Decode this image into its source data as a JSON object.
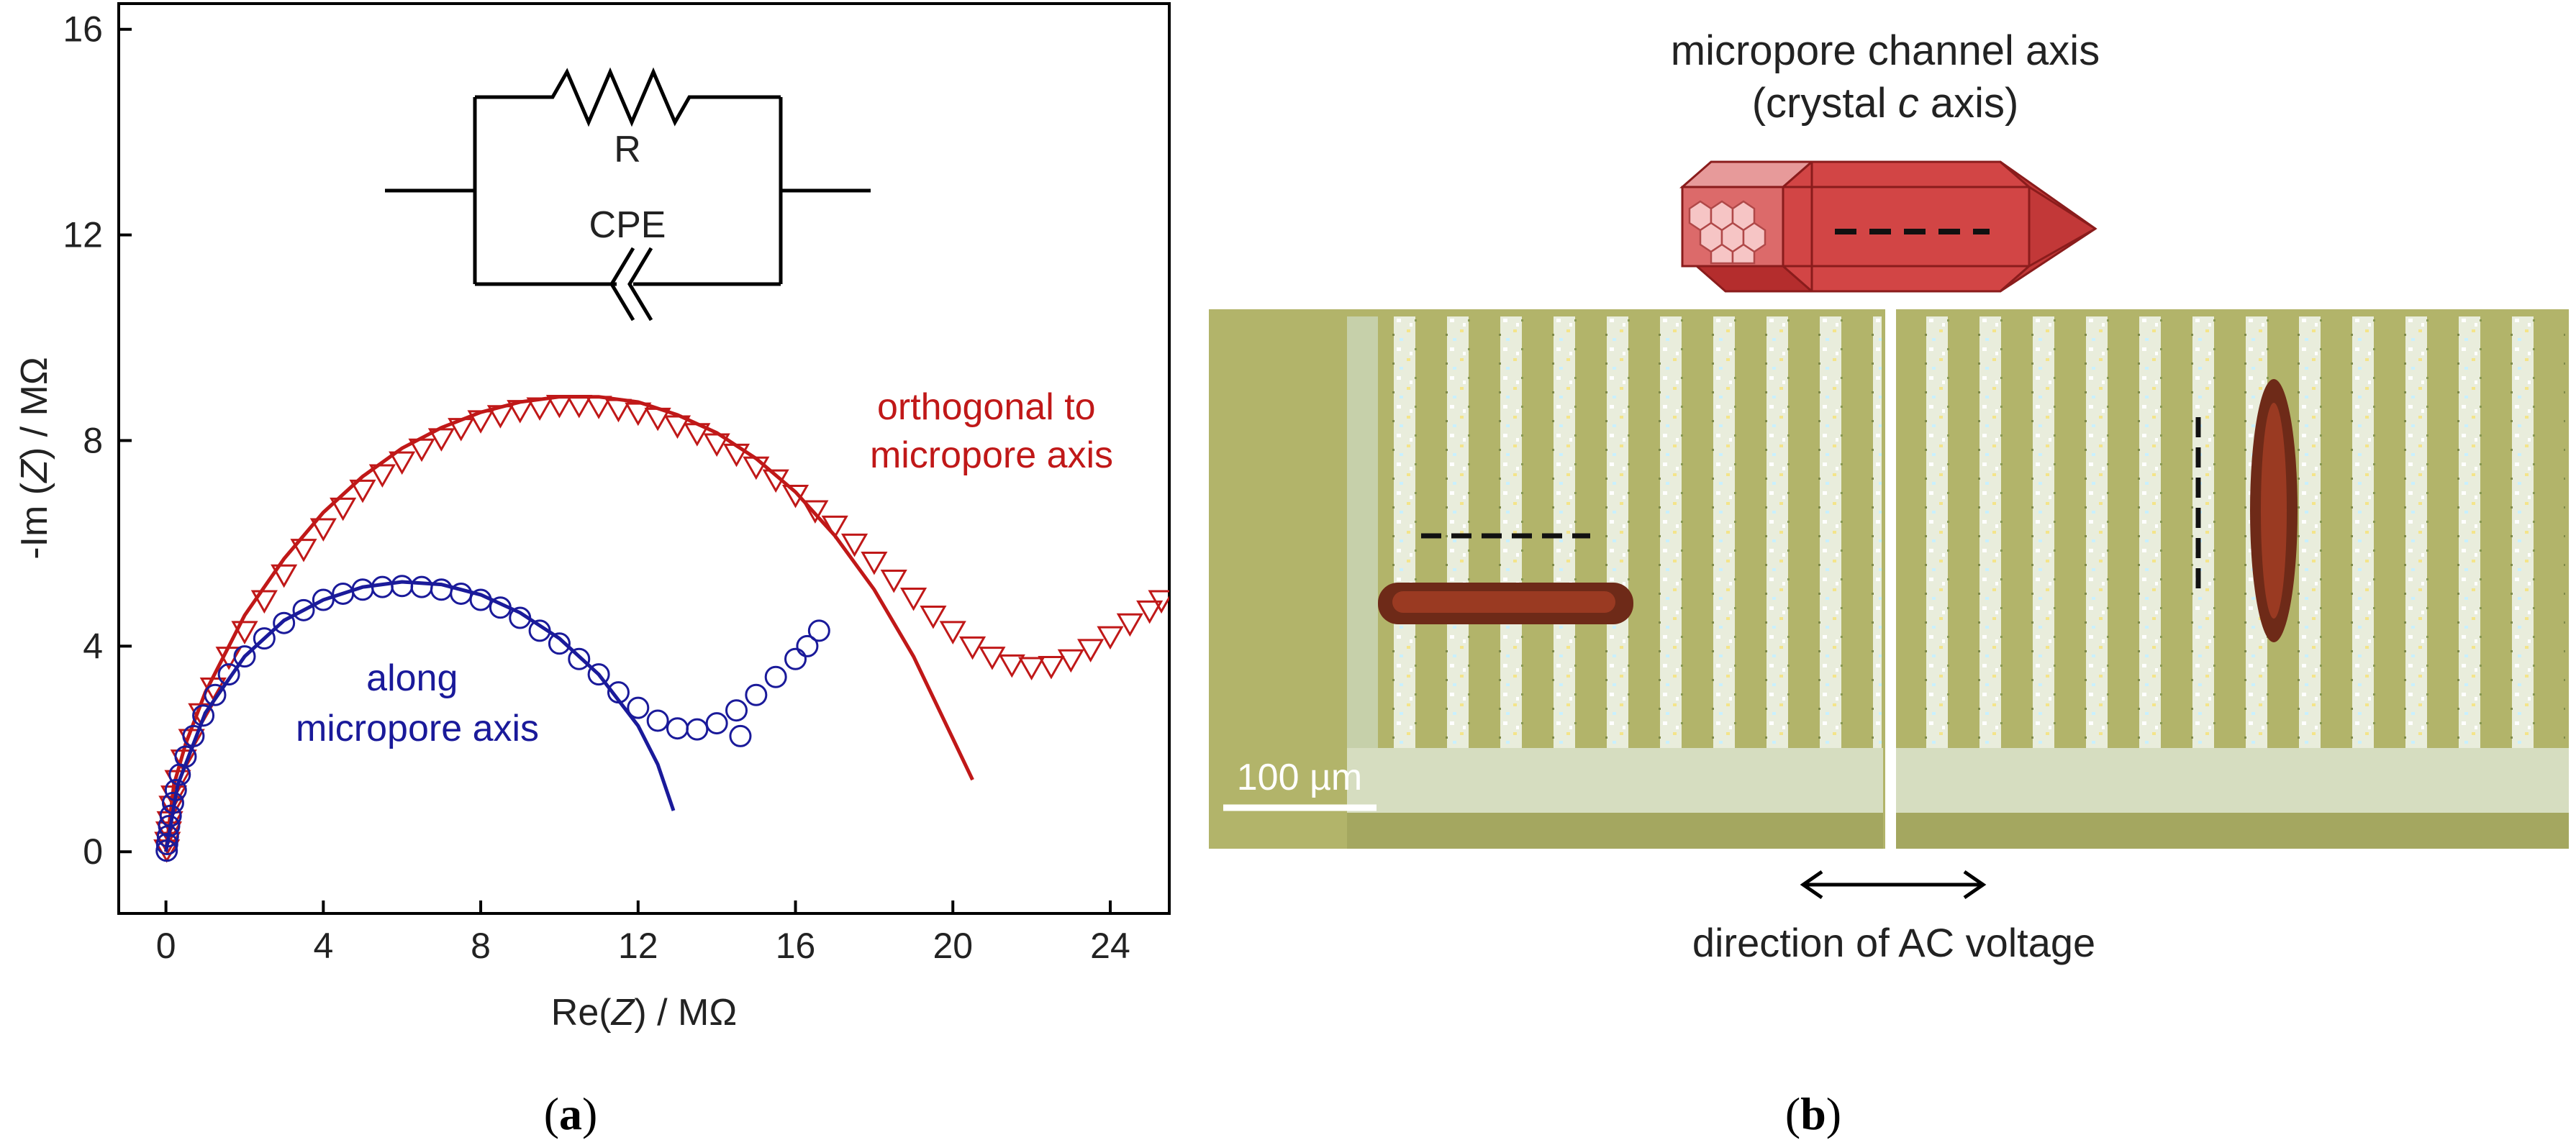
{
  "panel_a": {
    "label_open": "(",
    "label_letter": "a",
    "label_close": ")",
    "circuit": {
      "resistor_label": "R",
      "cpe_label": "CPE"
    }
  },
  "panel_b": {
    "label_open": "(",
    "label_letter": "b",
    "label_close": ")",
    "axis_title_line1": "micropore channel axis",
    "axis_title_line2_pre": "(crystal ",
    "axis_title_line2_italic": "c",
    "axis_title_line2_post": " axis)",
    "scale_bar": "100 µm",
    "direction_label": "direction of AC voltage"
  },
  "colors": {
    "red": "#c01818",
    "blue": "#1a1a9a",
    "crystal": "#d24545",
    "micro_bg": "#b2b46a"
  },
  "chart_data": {
    "type": "scatter",
    "title": "",
    "xlabel_pre": "Re(",
    "xlabel_italic": "Z",
    "xlabel_post": ") / MΩ",
    "ylabel_pre": "-Im (",
    "ylabel_italic": "Z",
    "ylabel_post": ") / MΩ",
    "xlim": [
      -1.2,
      25.5
    ],
    "ylim": [
      -1.2,
      16.5
    ],
    "xticks": [
      "0",
      "4",
      "8",
      "12",
      "16",
      "20",
      "24"
    ],
    "yticks": [
      "0",
      "4",
      "8",
      "12",
      "16"
    ],
    "series": [
      {
        "name": "orthogonal to micropore axis",
        "label_line1": "orthogonal to",
        "label_line2": "micropore axis",
        "color": "#c01818",
        "marker": "triangle-down",
        "points": [
          [
            0.02,
            0.05
          ],
          [
            0.04,
            0.2
          ],
          [
            0.07,
            0.4
          ],
          [
            0.1,
            0.6
          ],
          [
            0.15,
            0.9
          ],
          [
            0.2,
            1.1
          ],
          [
            0.3,
            1.4
          ],
          [
            0.45,
            1.8
          ],
          [
            0.65,
            2.2
          ],
          [
            0.9,
            2.7
          ],
          [
            1.2,
            3.2
          ],
          [
            1.6,
            3.8
          ],
          [
            2.0,
            4.3
          ],
          [
            2.5,
            4.9
          ],
          [
            3.0,
            5.4
          ],
          [
            3.5,
            5.9
          ],
          [
            4.0,
            6.3
          ],
          [
            4.5,
            6.7
          ],
          [
            5.0,
            7.05
          ],
          [
            5.5,
            7.35
          ],
          [
            6.0,
            7.6
          ],
          [
            6.5,
            7.85
          ],
          [
            7.0,
            8.05
          ],
          [
            7.5,
            8.25
          ],
          [
            8.0,
            8.4
          ],
          [
            8.5,
            8.5
          ],
          [
            9.0,
            8.6
          ],
          [
            9.5,
            8.65
          ],
          [
            10.0,
            8.7
          ],
          [
            10.5,
            8.7
          ],
          [
            11.0,
            8.68
          ],
          [
            11.5,
            8.62
          ],
          [
            12.0,
            8.55
          ],
          [
            12.5,
            8.45
          ],
          [
            13.0,
            8.3
          ],
          [
            13.5,
            8.15
          ],
          [
            14.0,
            7.95
          ],
          [
            14.5,
            7.75
          ],
          [
            15.0,
            7.5
          ],
          [
            15.5,
            7.25
          ],
          [
            16.0,
            6.95
          ],
          [
            16.5,
            6.65
          ],
          [
            17.0,
            6.35
          ],
          [
            17.5,
            6.0
          ],
          [
            18.0,
            5.65
          ],
          [
            18.5,
            5.3
          ],
          [
            19.0,
            4.95
          ],
          [
            19.5,
            4.6
          ],
          [
            20.0,
            4.3
          ],
          [
            20.5,
            4.0
          ],
          [
            21.0,
            3.8
          ],
          [
            21.5,
            3.65
          ],
          [
            22.0,
            3.6
          ],
          [
            22.5,
            3.62
          ],
          [
            23.0,
            3.75
          ],
          [
            23.5,
            3.95
          ],
          [
            24.0,
            4.2
          ],
          [
            24.5,
            4.45
          ],
          [
            25.0,
            4.7
          ],
          [
            25.3,
            4.9
          ]
        ],
        "fit": [
          [
            0.0,
            0.0
          ],
          [
            0.2,
            1.3
          ],
          [
            0.5,
            2.1
          ],
          [
            1.0,
            3.1
          ],
          [
            2.0,
            4.6
          ],
          [
            3.0,
            5.7
          ],
          [
            4.0,
            6.6
          ],
          [
            5.0,
            7.3
          ],
          [
            6.0,
            7.85
          ],
          [
            7.0,
            8.25
          ],
          [
            8.0,
            8.55
          ],
          [
            9.0,
            8.75
          ],
          [
            10.0,
            8.85
          ],
          [
            11.0,
            8.85
          ],
          [
            12.0,
            8.75
          ],
          [
            13.0,
            8.5
          ],
          [
            14.0,
            8.15
          ],
          [
            15.0,
            7.65
          ],
          [
            16.0,
            7.0
          ],
          [
            17.0,
            6.15
          ],
          [
            18.0,
            5.1
          ],
          [
            19.0,
            3.8
          ],
          [
            20.0,
            2.2
          ],
          [
            20.5,
            1.4
          ]
        ]
      },
      {
        "name": "along micropore axis",
        "label_line1": "along",
        "label_line2": "micropore axis",
        "color": "#1a1a9a",
        "marker": "circle",
        "points": [
          [
            0.02,
            0.02
          ],
          [
            0.03,
            0.15
          ],
          [
            0.05,
            0.3
          ],
          [
            0.08,
            0.5
          ],
          [
            0.12,
            0.7
          ],
          [
            0.18,
            0.95
          ],
          [
            0.25,
            1.2
          ],
          [
            0.35,
            1.5
          ],
          [
            0.5,
            1.85
          ],
          [
            0.7,
            2.25
          ],
          [
            0.95,
            2.65
          ],
          [
            1.25,
            3.05
          ],
          [
            1.6,
            3.45
          ],
          [
            2.0,
            3.8
          ],
          [
            2.5,
            4.15
          ],
          [
            3.0,
            4.45
          ],
          [
            3.5,
            4.7
          ],
          [
            4.0,
            4.9
          ],
          [
            4.5,
            5.02
          ],
          [
            5.0,
            5.1
          ],
          [
            5.5,
            5.15
          ],
          [
            6.0,
            5.17
          ],
          [
            6.5,
            5.15
          ],
          [
            7.0,
            5.1
          ],
          [
            7.5,
            5.02
          ],
          [
            8.0,
            4.9
          ],
          [
            8.5,
            4.75
          ],
          [
            9.0,
            4.55
          ],
          [
            9.5,
            4.3
          ],
          [
            10.0,
            4.05
          ],
          [
            10.5,
            3.75
          ],
          [
            11.0,
            3.45
          ],
          [
            11.5,
            3.1
          ],
          [
            12.0,
            2.8
          ],
          [
            12.5,
            2.55
          ],
          [
            13.0,
            2.4
          ],
          [
            13.5,
            2.38
          ],
          [
            14.0,
            2.5
          ],
          [
            14.5,
            2.75
          ],
          [
            15.0,
            3.05
          ],
          [
            15.5,
            3.4
          ],
          [
            16.0,
            3.75
          ],
          [
            16.3,
            4.0
          ],
          [
            16.6,
            4.3
          ],
          [
            14.6,
            2.25
          ]
        ],
        "fit": [
          [
            0.0,
            0.0
          ],
          [
            0.3,
            1.3
          ],
          [
            1.0,
            2.7
          ],
          [
            2.0,
            3.8
          ],
          [
            3.0,
            4.5
          ],
          [
            4.0,
            4.9
          ],
          [
            5.0,
            5.15
          ],
          [
            6.0,
            5.25
          ],
          [
            7.0,
            5.2
          ],
          [
            8.0,
            5.0
          ],
          [
            9.0,
            4.65
          ],
          [
            10.0,
            4.15
          ],
          [
            11.0,
            3.45
          ],
          [
            12.0,
            2.45
          ],
          [
            12.5,
            1.7
          ],
          [
            12.9,
            0.8
          ]
        ]
      }
    ]
  }
}
